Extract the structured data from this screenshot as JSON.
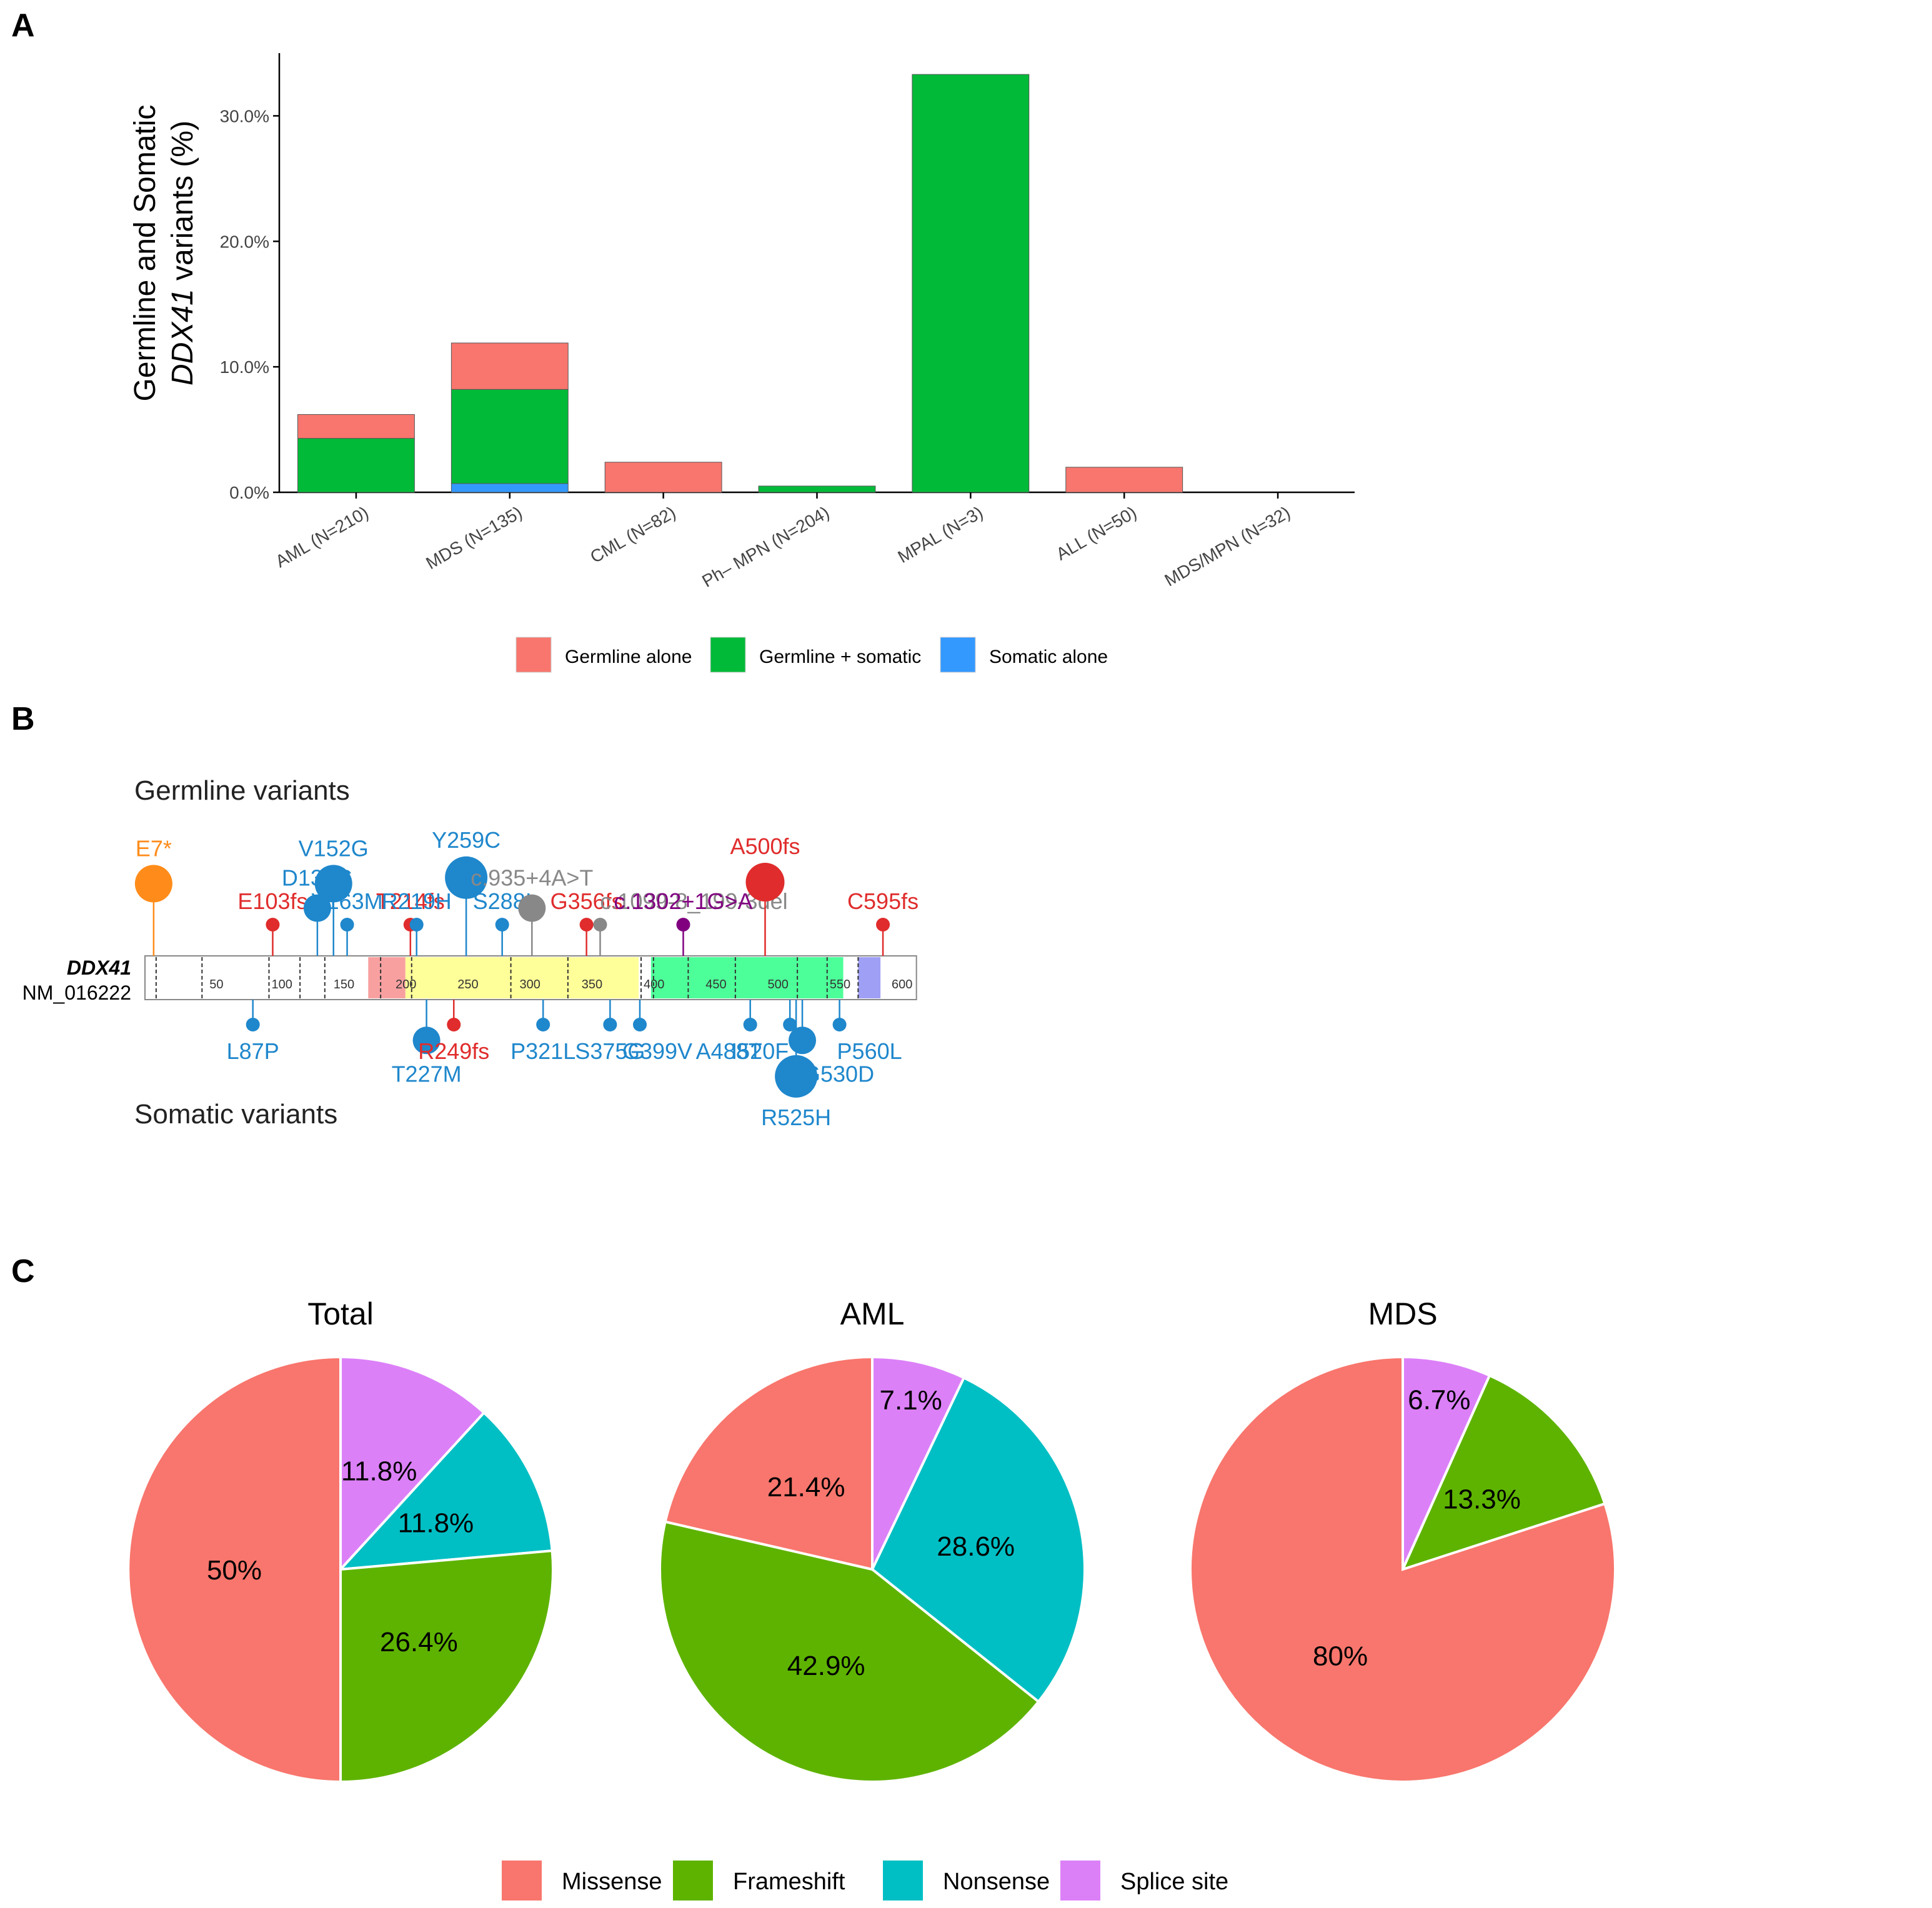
{
  "panel_labels": {
    "a": "A",
    "b": "B",
    "c": "C"
  },
  "chart_data": [
    {
      "type": "bar",
      "stacked": true,
      "ylabel_line1": "Germline and Somatic",
      "ylabel_gene": "DDX41",
      "ylabel_rest": " variants (%)",
      "xlabel": "",
      "ylim": [
        0,
        35
      ],
      "y_ticks": [
        0,
        10,
        20,
        30
      ],
      "y_tick_labels": [
        "0.0%",
        "10.0%",
        "20.0%",
        "30.0%"
      ],
      "grid": false,
      "legend_position": "bottom",
      "categories": [
        "AML (N=210)",
        "MDS (N=135)",
        "CML (N=82)",
        "Ph– MPN (N=204)",
        "MPAL (N=3)",
        "ALL (N=50)",
        "MDS/MPN (N=32)"
      ],
      "series": [
        {
          "name": "Somatic alone",
          "color": "#3399ff",
          "values": [
            0,
            0.7,
            0,
            0,
            0,
            0,
            0
          ]
        },
        {
          "name": "Germline + somatic",
          "color": "#00ba38",
          "values": [
            4.3,
            7.5,
            0,
            0.5,
            33.3,
            0,
            0
          ]
        },
        {
          "name": "Germline alone",
          "color": "#f8766d",
          "values": [
            1.9,
            3.7,
            2.4,
            0,
            0,
            2.0,
            0
          ]
        }
      ],
      "legend_order": [
        "Germline alone",
        "Germline + somatic",
        "Somatic alone"
      ]
    },
    {
      "type": "lollipop",
      "gene": "DDX41",
      "transcript": "NM_016222",
      "germline_label": "Germline variants",
      "somatic_label": "Somatic variants",
      "protein_length": 622,
      "x_ticks": [
        50,
        100,
        150,
        200,
        250,
        300,
        350,
        400,
        450,
        500,
        550,
        600
      ],
      "domains": [
        {
          "start": 180,
          "end": 210,
          "color": "#f8a0a0"
        },
        {
          "start": 210,
          "end": 398,
          "color": "#ffff99"
        },
        {
          "start": 408,
          "end": 563,
          "color": "#4dff99"
        },
        {
          "start": 575,
          "end": 593,
          "color": "#9f9ff6"
        }
      ],
      "dashed_positions": [
        9,
        46,
        100,
        125,
        145,
        190,
        215,
        295,
        341,
        400,
        410,
        438,
        476,
        526,
        550,
        575
      ],
      "germline": [
        {
          "label": "E7*",
          "pos": 7,
          "count": 3,
          "color": "#ff8c1a"
        },
        {
          "label": "E103fs",
          "pos": 103,
          "count": 1,
          "color": "#e02c2c"
        },
        {
          "label": "D139G",
          "pos": 139,
          "count": 2,
          "color": "#1f87cc"
        },
        {
          "label": "V152G",
          "pos": 152,
          "count": 3,
          "color": "#1f87cc"
        },
        {
          "label": "V163M",
          "pos": 163,
          "count": 1,
          "color": "#1f87cc"
        },
        {
          "label": "T214fs",
          "pos": 214,
          "count": 1,
          "color": "#e02c2c"
        },
        {
          "label": "R219H",
          "pos": 219,
          "count": 1,
          "color": "#1f87cc"
        },
        {
          "label": "Y259C",
          "pos": 259,
          "count": 5,
          "color": "#1f87cc"
        },
        {
          "label": "S288I",
          "pos": 288,
          "count": 1,
          "color": "#1f87cc"
        },
        {
          "label": "c.935+4A>T",
          "pos": 312,
          "count": 2,
          "color": "#888888"
        },
        {
          "label": "G356fs",
          "pos": 356,
          "count": 1,
          "color": "#e02c2c"
        },
        {
          "label": "c.1099-8_199-3del",
          "pos": 367,
          "count": 1,
          "color": "#888888"
        },
        {
          "label": "c.1302+1G>A",
          "pos": 434,
          "count": 1,
          "color": "#800080"
        },
        {
          "label": "A500fs",
          "pos": 500,
          "count": 4,
          "color": "#e02c2c"
        },
        {
          "label": "C595fs",
          "pos": 595,
          "count": 1,
          "color": "#e02c2c"
        }
      ],
      "somatic": [
        {
          "label": "L87P",
          "pos": 87,
          "count": 1,
          "color": "#1f87cc"
        },
        {
          "label": "T227M",
          "pos": 227,
          "count": 2,
          "color": "#1f87cc"
        },
        {
          "label": "R249fs",
          "pos": 249,
          "count": 1,
          "color": "#e02c2c"
        },
        {
          "label": "P321L",
          "pos": 321,
          "count": 1,
          "color": "#1f87cc"
        },
        {
          "label": "S375G",
          "pos": 375,
          "count": 1,
          "color": "#1f87cc"
        },
        {
          "label": "G399V",
          "pos": 399,
          "count": 1,
          "color": "#1f87cc"
        },
        {
          "label": "A488T",
          "pos": 488,
          "count": 1,
          "color": "#1f87cc"
        },
        {
          "label": "I520F",
          "pos": 520,
          "count": 1,
          "color": "#1f87cc"
        },
        {
          "label": "R525H",
          "pos": 525,
          "count": 6,
          "color": "#1f87cc"
        },
        {
          "label": "G530D",
          "pos": 530,
          "count": 2,
          "color": "#1f87cc"
        },
        {
          "label": "P560L",
          "pos": 560,
          "count": 1,
          "color": "#1f87cc"
        }
      ]
    },
    {
      "type": "pie",
      "title": "Total",
      "slices": [
        {
          "name": "Splice site",
          "value": 11.8,
          "label": "11.8%"
        },
        {
          "name": "Nonsense",
          "value": 11.8,
          "label": "11.8%"
        },
        {
          "name": "Frameshift",
          "value": 26.4,
          "label": "26.4%"
        },
        {
          "name": "Missense",
          "value": 50,
          "label": "50%"
        }
      ]
    },
    {
      "type": "pie",
      "title": "AML",
      "slices": [
        {
          "name": "Splice site",
          "value": 7.1,
          "label": "7.1%"
        },
        {
          "name": "Nonsense",
          "value": 28.6,
          "label": "28.6%"
        },
        {
          "name": "Frameshift",
          "value": 42.9,
          "label": "42.9%"
        },
        {
          "name": "Missense",
          "value": 21.4,
          "label": "21.4%"
        }
      ]
    },
    {
      "type": "pie",
      "title": "MDS",
      "slices": [
        {
          "name": "Splice site",
          "value": 6.7,
          "label": "6.7%"
        },
        {
          "name": "Frameshift",
          "value": 13.3,
          "label": "13.3%"
        },
        {
          "name": "Missense",
          "value": 80,
          "label": "80%"
        }
      ]
    }
  ],
  "pie_legend": [
    {
      "name": "Missense",
      "color": "#f8766d"
    },
    {
      "name": "Frameshift",
      "color": "#5eb300"
    },
    {
      "name": "Nonsense",
      "color": "#00bfc4"
    },
    {
      "name": "Splice site",
      "color": "#dc80f8"
    }
  ]
}
